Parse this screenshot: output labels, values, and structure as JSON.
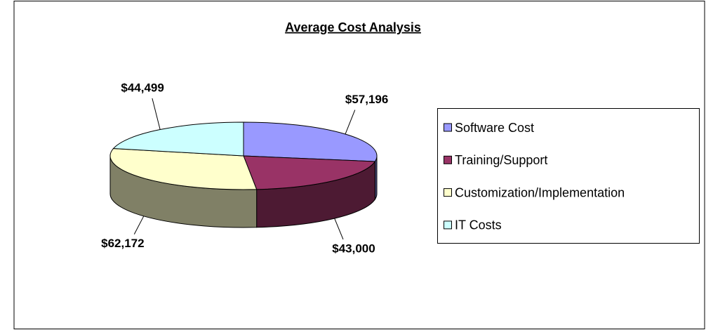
{
  "chart_data": {
    "type": "pie",
    "title": "Average Cost Analysis",
    "categories": [
      "Software Cost",
      "Training/Support",
      "Customization/Implementation",
      "IT Costs"
    ],
    "values": [
      57196,
      43000,
      62172,
      44499
    ],
    "value_labels": [
      "$57,196",
      "$43,000",
      "$62,172",
      "$44,499"
    ],
    "colors": [
      "#9999ff",
      "#993366",
      "#ffffcc",
      "#ccffff"
    ],
    "legend": "right"
  }
}
